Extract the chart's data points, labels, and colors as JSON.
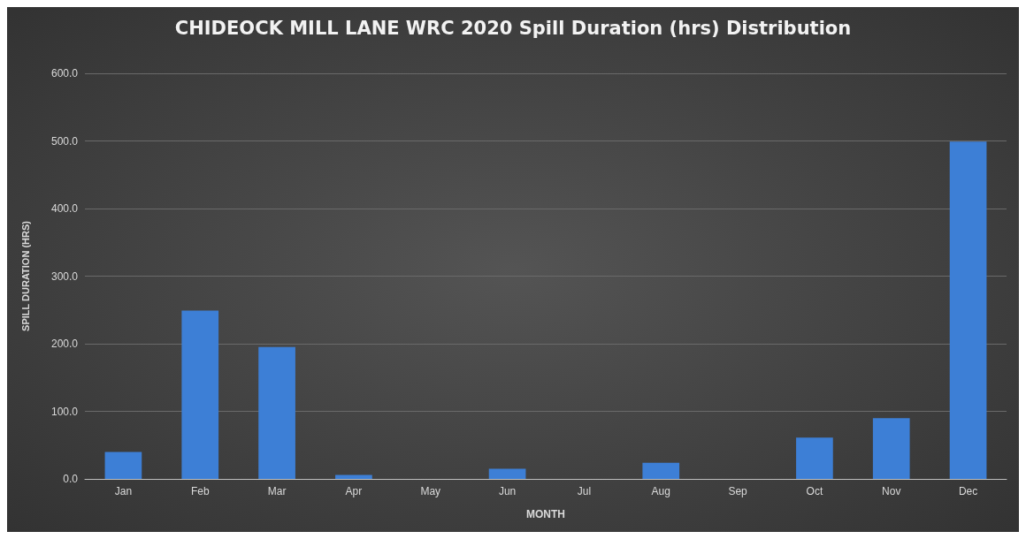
{
  "chart_data": {
    "type": "bar",
    "title": "CHIDEOCK MILL LANE WRC 2020 Spill Duration (hrs) Distribution",
    "xlabel": "MONTH",
    "ylabel": "SPILL DURATION (HRS)",
    "categories": [
      "Jan",
      "Feb",
      "Mar",
      "Apr",
      "May",
      "Jun",
      "Jul",
      "Aug",
      "Sep",
      "Oct",
      "Nov",
      "Dec"
    ],
    "values": [
      40,
      249,
      195,
      6,
      0,
      15,
      0,
      24,
      0,
      61,
      90,
      499
    ],
    "color": "#3d7fd6",
    "ylim": [
      0,
      600
    ],
    "yticks": [
      {
        "value": 0,
        "label": "0.0"
      },
      {
        "value": 100,
        "label": "100.0"
      },
      {
        "value": 200,
        "label": "200.0"
      },
      {
        "value": 300,
        "label": "300.0"
      },
      {
        "value": 400,
        "label": "400.0"
      },
      {
        "value": 500,
        "label": "500.0"
      },
      {
        "value": 600,
        "label": "600.0"
      }
    ],
    "grid": "y"
  }
}
